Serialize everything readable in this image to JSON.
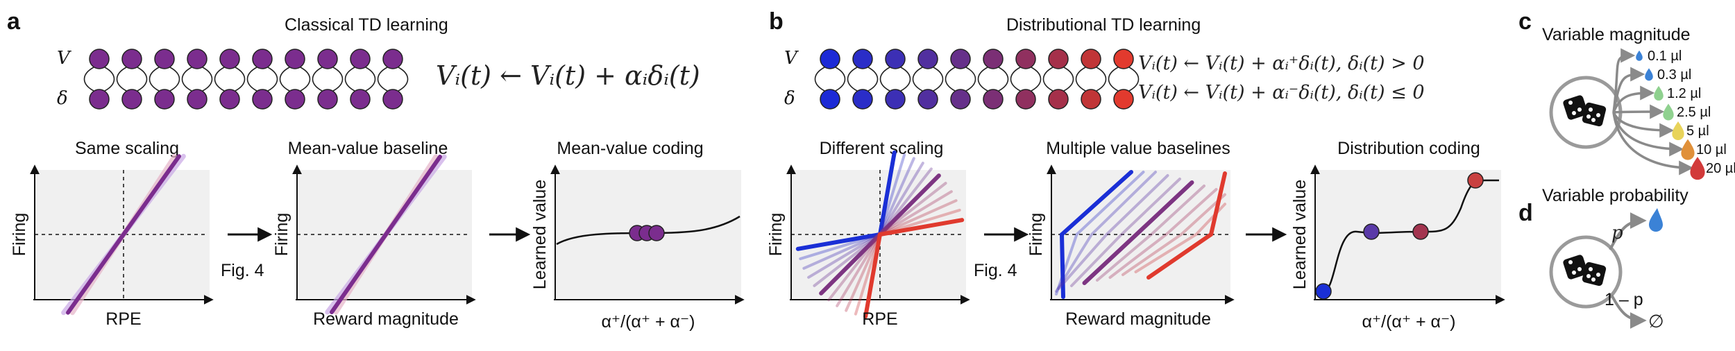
{
  "panel_a": {
    "letter": "a",
    "title": "Classical TD learning",
    "row_v": "V",
    "row_delta": "δ",
    "equation": "Vᵢ(t) ← Vᵢ(t) + αᵢδᵢ(t)",
    "sub1": {
      "title": "Same scaling",
      "ylabel": "Firing",
      "xlabel": "RPE"
    },
    "sub2": {
      "title": "Mean-value baseline",
      "ylabel": "Firing",
      "xlabel": "Reward magnitude"
    },
    "sub3": {
      "title": "Mean-value coding",
      "ylabel": "Learned value",
      "xlabel": "α⁺/(α⁺ + α⁻)"
    },
    "fig_ref": "Fig. 4"
  },
  "panel_b": {
    "letter": "b",
    "title": "Distributional TD learning",
    "row_v": "V",
    "row_delta": "δ",
    "eq1": "Vᵢ(t) ← Vᵢ(t) + αᵢ⁺δᵢ(t),  δᵢ(t) > 0",
    "eq2": "Vᵢ(t) ← Vᵢ(t) + αᵢ⁻δᵢ(t),  δᵢ(t) ≤ 0",
    "sub1": {
      "title": "Different scaling",
      "ylabel": "Firing",
      "xlabel": "RPE"
    },
    "sub2": {
      "title": "Multiple value baselines",
      "ylabel": "Firing",
      "xlabel": "Reward magnitude"
    },
    "sub3": {
      "title": "Distribution coding",
      "ylabel": "Learned value",
      "xlabel": "α⁺/(α⁺ + α⁻)"
    },
    "fig_ref": "Fig. 4"
  },
  "panel_c": {
    "letter": "c",
    "title": "Variable magnitude",
    "rewards": [
      "0.1 µl",
      "0.3 µl",
      "1.2 µl",
      "2.5 µl",
      "5 µl",
      "10 µl",
      "20 µl"
    ],
    "drop_colors": [
      "#3b82d6",
      "#3b82d6",
      "#8fd18f",
      "#8fd18f",
      "#e8d35a",
      "#e0903a",
      "#d23a3a"
    ]
  },
  "panel_d": {
    "letter": "d",
    "title": "Variable probability",
    "p_label": "p",
    "q_label": "1 – p",
    "empty_label": "∅"
  },
  "colors": {
    "purple": "#7b2d8e",
    "blue": "#1a2fd6",
    "red": "#e03a2e",
    "plot_bg": "#f0f0f0"
  }
}
